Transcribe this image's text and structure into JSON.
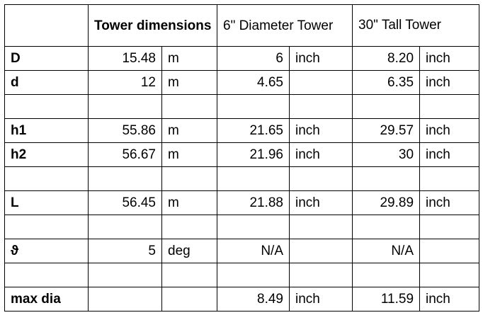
{
  "headers": {
    "tower_dimensions": "Tower dimensions",
    "six_inch": "6\" Diameter Tower",
    "thirty_inch": "30\" Tall Tower"
  },
  "rows": [
    {
      "label": "D",
      "tower_value": "15.48",
      "tower_unit": "m",
      "six_value": "6",
      "six_unit": "inch",
      "thirty_value": "8.20",
      "thirty_unit": "inch"
    },
    {
      "label": "d",
      "tower_value": "12",
      "tower_unit": "m",
      "six_value": "4.65",
      "six_unit": "",
      "thirty_value": "6.35",
      "thirty_unit": "inch"
    },
    {
      "label": "",
      "tower_value": "",
      "tower_unit": "",
      "six_value": "",
      "six_unit": "",
      "thirty_value": "",
      "thirty_unit": ""
    },
    {
      "label": "h1",
      "tower_value": "55.86",
      "tower_unit": "m",
      "six_value": "21.65",
      "six_unit": "inch",
      "thirty_value": "29.57",
      "thirty_unit": "inch"
    },
    {
      "label": "h2",
      "tower_value": "56.67",
      "tower_unit": "m",
      "six_value": "21.96",
      "six_unit": "inch",
      "thirty_value": "30",
      "thirty_unit": "inch"
    },
    {
      "label": "",
      "tower_value": "",
      "tower_unit": "",
      "six_value": "",
      "six_unit": "",
      "thirty_value": "",
      "thirty_unit": ""
    },
    {
      "label": "L",
      "tower_value": "56.45",
      "tower_unit": "m",
      "six_value": "21.88",
      "six_unit": "inch",
      "thirty_value": "29.89",
      "thirty_unit": "inch"
    },
    {
      "label": "",
      "tower_value": "",
      "tower_unit": "",
      "six_value": "",
      "six_unit": "",
      "thirty_value": "",
      "thirty_unit": ""
    },
    {
      "label": "ϑ",
      "tower_value": "5",
      "tower_unit": "deg",
      "six_value": "N/A",
      "six_unit": "",
      "thirty_value": "N/A",
      "thirty_unit": ""
    },
    {
      "label": "",
      "tower_value": "",
      "tower_unit": "",
      "six_value": "",
      "six_unit": "",
      "thirty_value": "",
      "thirty_unit": ""
    },
    {
      "label": "max dia",
      "tower_value": "",
      "tower_unit": "",
      "six_value": "8.49",
      "six_unit": "inch",
      "thirty_value": "11.59",
      "thirty_unit": "inch"
    }
  ]
}
